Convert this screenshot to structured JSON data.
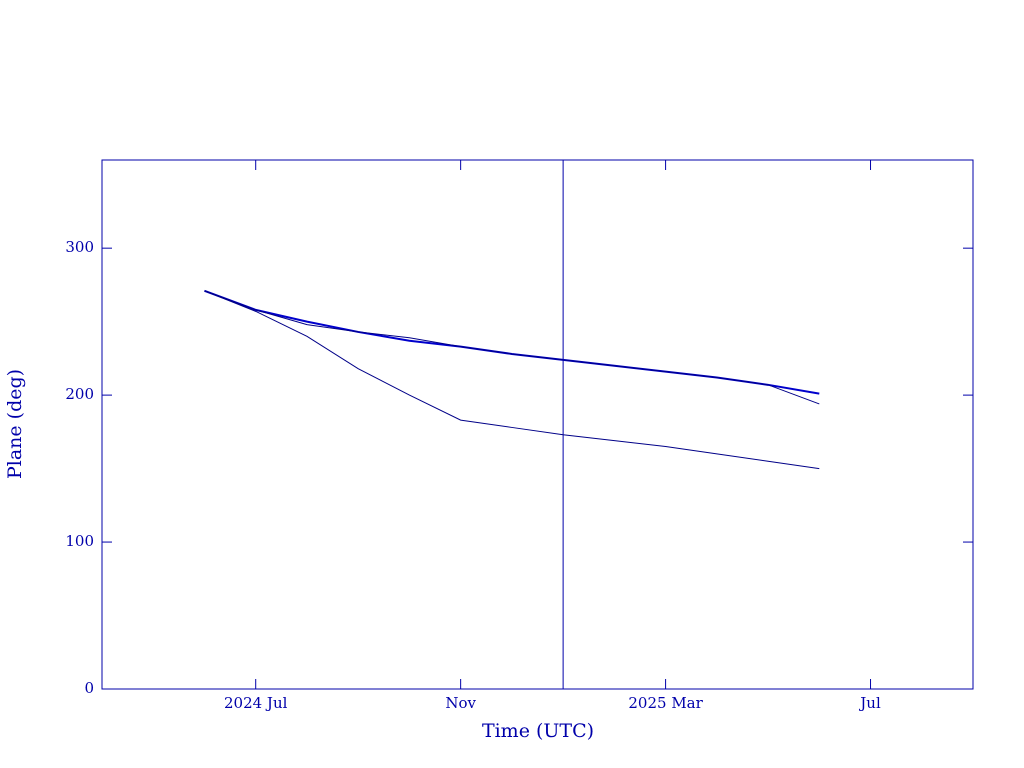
{
  "chart_data": {
    "type": "line",
    "x_label": "Time (UTC)",
    "y_label": "Plane (deg)",
    "x": [
      "2024-06",
      "2024-07",
      "2024-08",
      "2024-09",
      "2024-10",
      "2024-11",
      "2024-12",
      "2025-01",
      "2025-02",
      "2025-03",
      "2025-04",
      "2025-05",
      "2025-06"
    ],
    "series": [
      {
        "color": "#0000cc",
        "values": [
          271,
          258,
          250,
          243,
          237,
          233,
          228,
          224,
          220,
          216,
          212,
          207,
          201
        ]
      },
      {
        "color": "#000088",
        "values": [
          271,
          258,
          248,
          243,
          239,
          233,
          228,
          224,
          220,
          216,
          212,
          207,
          194
        ]
      },
      {
        "color": "#000088",
        "values": [
          271,
          257,
          240,
          218,
          200,
          183,
          178,
          173,
          169,
          165,
          160,
          155,
          150
        ]
      }
    ],
    "xlim": [
      "2024-04",
      "2025-09"
    ],
    "xticks": [
      {
        "value": "2024-07",
        "label": "2024 Jul"
      },
      {
        "value": "2024-11",
        "label": "Nov"
      },
      {
        "value": "2025-03",
        "label": "2025 Mar"
      },
      {
        "value": "2025-07",
        "label": "Jul"
      }
    ],
    "ylim": [
      0,
      360
    ],
    "yticks": [
      0,
      100,
      200,
      300
    ],
    "vline": "2025-01",
    "axis_color": "#0000aa"
  }
}
